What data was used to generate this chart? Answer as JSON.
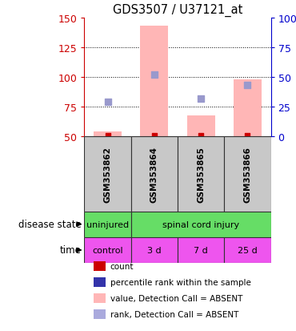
{
  "title": "GDS3507 / U37121_at",
  "samples": [
    "GSM353862",
    "GSM353864",
    "GSM353865",
    "GSM353866"
  ],
  "left_ylim": [
    50,
    150
  ],
  "left_yticks": [
    50,
    75,
    100,
    125,
    150
  ],
  "right_ylim": [
    0,
    100
  ],
  "right_yticks": [
    0,
    25,
    50,
    75,
    100
  ],
  "right_yticklabels": [
    "0",
    "25",
    "50",
    "75",
    "100%"
  ],
  "bar_values": [
    54,
    143,
    68,
    98
  ],
  "bar_color": "#FFB6B6",
  "rank_markers": [
    79,
    102,
    82,
    93
  ],
  "rank_color": "#9999CC",
  "count_markers": [
    50.8,
    50.8,
    50.8,
    50.8
  ],
  "count_color": "#CC0000",
  "disease_state_color": "#66DD66",
  "time_labels": [
    "control",
    "3 d",
    "7 d",
    "25 d"
  ],
  "time_color": "#EE55EE",
  "legend_items": [
    {
      "color": "#CC0000",
      "label": "count"
    },
    {
      "color": "#3333AA",
      "label": "percentile rank within the sample"
    },
    {
      "color": "#FFB6B6",
      "label": "value, Detection Call = ABSENT"
    },
    {
      "color": "#AAAADD",
      "label": "rank, Detection Call = ABSENT"
    }
  ],
  "left_yaxis_color": "#CC0000",
  "right_yaxis_color": "#0000CC",
  "sample_box_color": "#C8C8C8",
  "box_edge_color": "#333333"
}
